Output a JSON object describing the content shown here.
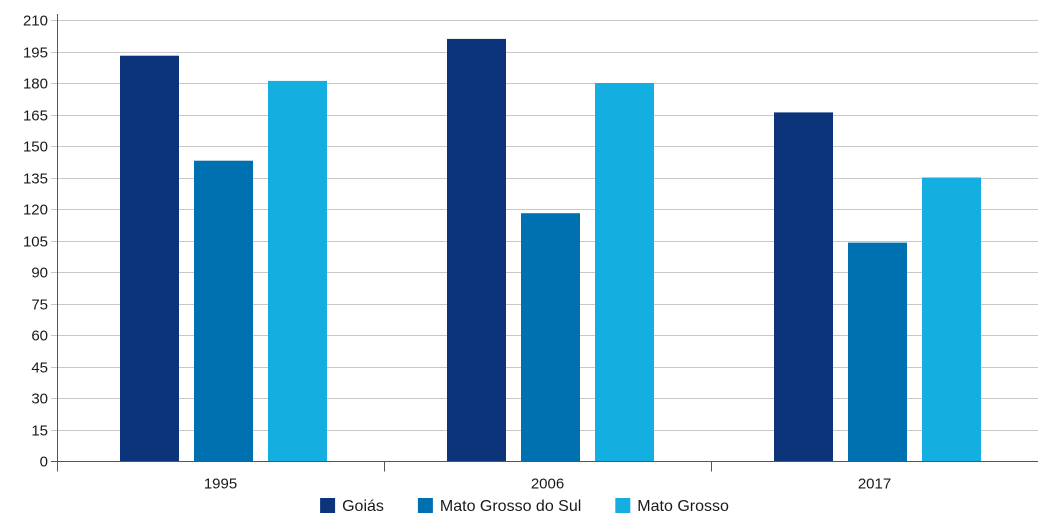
{
  "chart_data": {
    "type": "bar",
    "title": "",
    "xlabel": "",
    "ylabel": "",
    "categories": [
      "1995",
      "2006",
      "2017"
    ],
    "ylim": [
      0,
      210
    ],
    "yticks": [
      0,
      15,
      30,
      45,
      60,
      75,
      90,
      105,
      120,
      135,
      150,
      165,
      180,
      195,
      210
    ],
    "grid": true,
    "legend_position": "bottom",
    "series": [
      {
        "name": "Goiás",
        "color": "#0c347b",
        "values": [
          193,
          201,
          166
        ]
      },
      {
        "name": "Mato Grosso do Sul",
        "color": "#0071b0",
        "values": [
          143,
          118,
          104
        ]
      },
      {
        "name": "Mato Grosso",
        "color": "#14afe0",
        "values": [
          181,
          180,
          135
        ]
      }
    ]
  }
}
